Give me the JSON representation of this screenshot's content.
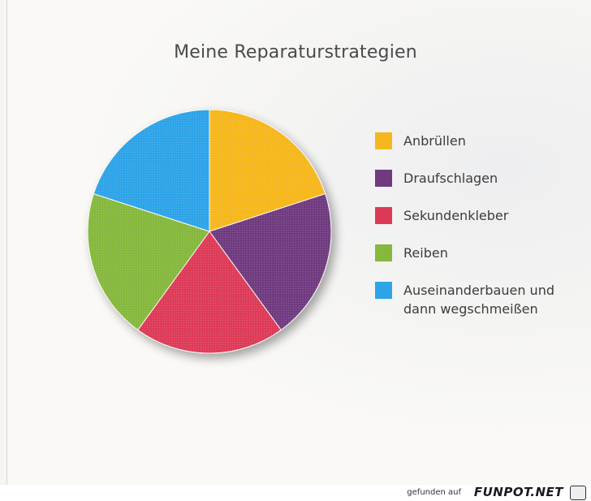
{
  "chart_data": {
    "type": "pie",
    "title": "Meine Reparaturstrategien",
    "categories": [
      "Anbrüllen",
      "Draufschlagen",
      "Sekundenkleber",
      "Reiben",
      "Auseinanderbauen und\ndann wegschmeißen"
    ],
    "values": [
      20,
      20,
      20,
      20,
      20
    ],
    "colors": [
      "#f6b71e",
      "#6f3a80",
      "#dd3a58",
      "#86b83c",
      "#2ea4e8"
    ],
    "legend_position": "right"
  },
  "footer": {
    "text": "gefunden auf",
    "brand": "FUNPOT.NET"
  }
}
